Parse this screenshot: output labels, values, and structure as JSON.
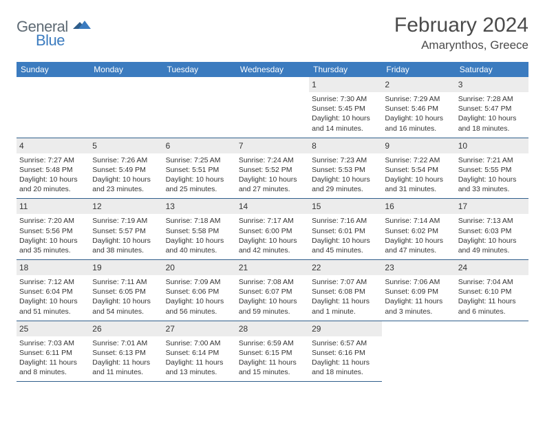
{
  "brand": {
    "word1": "General",
    "word2": "Blue"
  },
  "title": "February 2024",
  "location": "Amarynthos, Greece",
  "colors": {
    "header_bg": "#3b7bbf",
    "header_text": "#ffffff",
    "rule": "#2e5d8a",
    "daynum_bg": "#ececec",
    "text": "#333333",
    "logo_gray": "#5e6a74",
    "logo_blue": "#3b7bbf"
  },
  "weekdays": [
    "Sunday",
    "Monday",
    "Tuesday",
    "Wednesday",
    "Thursday",
    "Friday",
    "Saturday"
  ],
  "rows": [
    [
      null,
      null,
      null,
      null,
      {
        "n": "1",
        "sunrise": "Sunrise: 7:30 AM",
        "sunset": "Sunset: 5:45 PM",
        "daylight": "Daylight: 10 hours and 14 minutes."
      },
      {
        "n": "2",
        "sunrise": "Sunrise: 7:29 AM",
        "sunset": "Sunset: 5:46 PM",
        "daylight": "Daylight: 10 hours and 16 minutes."
      },
      {
        "n": "3",
        "sunrise": "Sunrise: 7:28 AM",
        "sunset": "Sunset: 5:47 PM",
        "daylight": "Daylight: 10 hours and 18 minutes."
      }
    ],
    [
      {
        "n": "4",
        "sunrise": "Sunrise: 7:27 AM",
        "sunset": "Sunset: 5:48 PM",
        "daylight": "Daylight: 10 hours and 20 minutes."
      },
      {
        "n": "5",
        "sunrise": "Sunrise: 7:26 AM",
        "sunset": "Sunset: 5:49 PM",
        "daylight": "Daylight: 10 hours and 23 minutes."
      },
      {
        "n": "6",
        "sunrise": "Sunrise: 7:25 AM",
        "sunset": "Sunset: 5:51 PM",
        "daylight": "Daylight: 10 hours and 25 minutes."
      },
      {
        "n": "7",
        "sunrise": "Sunrise: 7:24 AM",
        "sunset": "Sunset: 5:52 PM",
        "daylight": "Daylight: 10 hours and 27 minutes."
      },
      {
        "n": "8",
        "sunrise": "Sunrise: 7:23 AM",
        "sunset": "Sunset: 5:53 PM",
        "daylight": "Daylight: 10 hours and 29 minutes."
      },
      {
        "n": "9",
        "sunrise": "Sunrise: 7:22 AM",
        "sunset": "Sunset: 5:54 PM",
        "daylight": "Daylight: 10 hours and 31 minutes."
      },
      {
        "n": "10",
        "sunrise": "Sunrise: 7:21 AM",
        "sunset": "Sunset: 5:55 PM",
        "daylight": "Daylight: 10 hours and 33 minutes."
      }
    ],
    [
      {
        "n": "11",
        "sunrise": "Sunrise: 7:20 AM",
        "sunset": "Sunset: 5:56 PM",
        "daylight": "Daylight: 10 hours and 35 minutes."
      },
      {
        "n": "12",
        "sunrise": "Sunrise: 7:19 AM",
        "sunset": "Sunset: 5:57 PM",
        "daylight": "Daylight: 10 hours and 38 minutes."
      },
      {
        "n": "13",
        "sunrise": "Sunrise: 7:18 AM",
        "sunset": "Sunset: 5:58 PM",
        "daylight": "Daylight: 10 hours and 40 minutes."
      },
      {
        "n": "14",
        "sunrise": "Sunrise: 7:17 AM",
        "sunset": "Sunset: 6:00 PM",
        "daylight": "Daylight: 10 hours and 42 minutes."
      },
      {
        "n": "15",
        "sunrise": "Sunrise: 7:16 AM",
        "sunset": "Sunset: 6:01 PM",
        "daylight": "Daylight: 10 hours and 45 minutes."
      },
      {
        "n": "16",
        "sunrise": "Sunrise: 7:14 AM",
        "sunset": "Sunset: 6:02 PM",
        "daylight": "Daylight: 10 hours and 47 minutes."
      },
      {
        "n": "17",
        "sunrise": "Sunrise: 7:13 AM",
        "sunset": "Sunset: 6:03 PM",
        "daylight": "Daylight: 10 hours and 49 minutes."
      }
    ],
    [
      {
        "n": "18",
        "sunrise": "Sunrise: 7:12 AM",
        "sunset": "Sunset: 6:04 PM",
        "daylight": "Daylight: 10 hours and 51 minutes."
      },
      {
        "n": "19",
        "sunrise": "Sunrise: 7:11 AM",
        "sunset": "Sunset: 6:05 PM",
        "daylight": "Daylight: 10 hours and 54 minutes."
      },
      {
        "n": "20",
        "sunrise": "Sunrise: 7:09 AM",
        "sunset": "Sunset: 6:06 PM",
        "daylight": "Daylight: 10 hours and 56 minutes."
      },
      {
        "n": "21",
        "sunrise": "Sunrise: 7:08 AM",
        "sunset": "Sunset: 6:07 PM",
        "daylight": "Daylight: 10 hours and 59 minutes."
      },
      {
        "n": "22",
        "sunrise": "Sunrise: 7:07 AM",
        "sunset": "Sunset: 6:08 PM",
        "daylight": "Daylight: 11 hours and 1 minute."
      },
      {
        "n": "23",
        "sunrise": "Sunrise: 7:06 AM",
        "sunset": "Sunset: 6:09 PM",
        "daylight": "Daylight: 11 hours and 3 minutes."
      },
      {
        "n": "24",
        "sunrise": "Sunrise: 7:04 AM",
        "sunset": "Sunset: 6:10 PM",
        "daylight": "Daylight: 11 hours and 6 minutes."
      }
    ],
    [
      {
        "n": "25",
        "sunrise": "Sunrise: 7:03 AM",
        "sunset": "Sunset: 6:11 PM",
        "daylight": "Daylight: 11 hours and 8 minutes."
      },
      {
        "n": "26",
        "sunrise": "Sunrise: 7:01 AM",
        "sunset": "Sunset: 6:13 PM",
        "daylight": "Daylight: 11 hours and 11 minutes."
      },
      {
        "n": "27",
        "sunrise": "Sunrise: 7:00 AM",
        "sunset": "Sunset: 6:14 PM",
        "daylight": "Daylight: 11 hours and 13 minutes."
      },
      {
        "n": "28",
        "sunrise": "Sunrise: 6:59 AM",
        "sunset": "Sunset: 6:15 PM",
        "daylight": "Daylight: 11 hours and 15 minutes."
      },
      {
        "n": "29",
        "sunrise": "Sunrise: 6:57 AM",
        "sunset": "Sunset: 6:16 PM",
        "daylight": "Daylight: 11 hours and 18 minutes."
      },
      null,
      null
    ]
  ]
}
